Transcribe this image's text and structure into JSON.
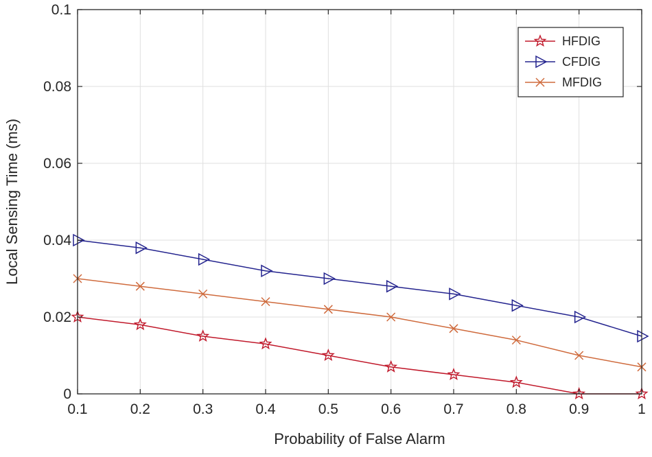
{
  "chart_data": {
    "type": "line",
    "title": "",
    "xlabel": "Probability of False Alarm",
    "ylabel": "Local Sensing Time (ms)",
    "xlim": [
      0.1,
      1
    ],
    "ylim": [
      0,
      0.1
    ],
    "x": [
      0.1,
      0.2,
      0.3,
      0.4,
      0.5,
      0.6,
      0.7,
      0.8,
      0.9,
      1.0
    ],
    "xticks": [
      0.1,
      0.2,
      0.3,
      0.4,
      0.5,
      0.6,
      0.7,
      0.8,
      0.9,
      1
    ],
    "xtick_labels": [
      "0.1",
      "0.2",
      "0.3",
      "0.4",
      "0.5",
      "0.6",
      "0.7",
      "0.8",
      "0.9",
      "1"
    ],
    "yticks": [
      0,
      0.02,
      0.04,
      0.06,
      0.08,
      0.1
    ],
    "ytick_labels": [
      "0",
      "0.02",
      "0.04",
      "0.06",
      "0.08",
      "0.1"
    ],
    "grid": true,
    "legend_position": "top-right",
    "series": [
      {
        "name": "HFDIG",
        "color": "#c0182a",
        "marker": "star",
        "values": [
          0.02,
          0.018,
          0.015,
          0.013,
          0.01,
          0.007,
          0.005,
          0.003,
          0.0,
          0.0
        ]
      },
      {
        "name": "CFDIG",
        "color": "#23238e",
        "marker": "triangle-right",
        "values": [
          0.04,
          0.038,
          0.035,
          0.032,
          0.03,
          0.028,
          0.026,
          0.023,
          0.02,
          0.015
        ]
      },
      {
        "name": "MFDIG",
        "color": "#cf6a3c",
        "marker": "x",
        "values": [
          0.03,
          0.028,
          0.026,
          0.024,
          0.022,
          0.02,
          0.017,
          0.014,
          0.01,
          0.007
        ]
      }
    ]
  }
}
